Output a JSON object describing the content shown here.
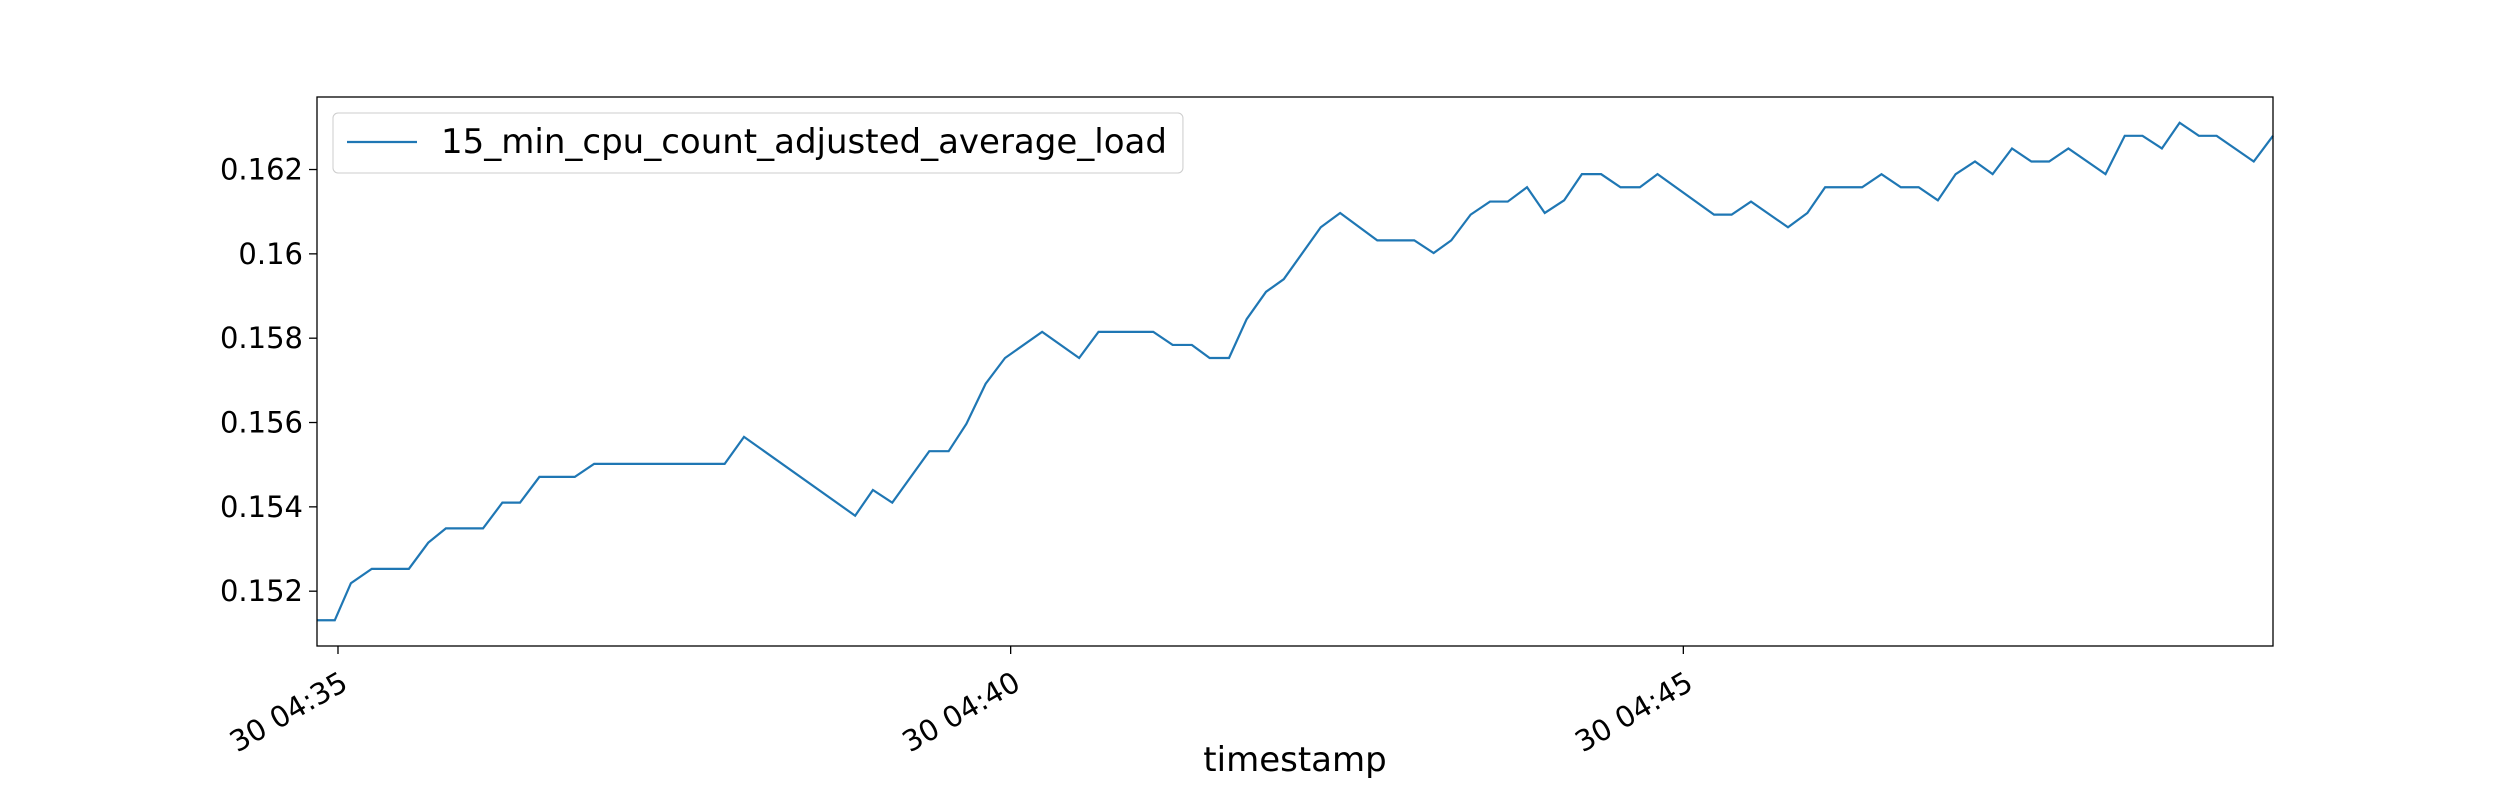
{
  "chart_data": {
    "type": "line",
    "xlabel": "timestamp",
    "x": [
      34.844,
      34.976,
      35.096,
      35.251,
      35.527,
      35.671,
      35.802,
      36.078,
      36.222,
      36.353,
      36.497,
      36.76,
      36.904,
      37.874,
      38.018,
      38.844,
      38.976,
      39.12,
      39.395,
      39.539,
      39.671,
      39.814,
      39.958,
      40.234,
      40.509,
      40.653,
      41.06,
      41.204,
      41.347,
      41.479,
      41.623,
      41.754,
      41.898,
      42.03,
      42.305,
      42.449,
      42.725,
      43.0,
      43.144,
      43.275,
      43.419,
      43.563,
      43.695,
      43.838,
      43.97,
      44.114,
      44.246,
      44.389,
      44.533,
      44.677,
      44.808,
      45.228,
      45.359,
      45.503,
      45.778,
      45.922,
      46.054,
      46.329,
      46.473,
      46.617,
      46.749,
      46.892,
      47.024,
      47.168,
      47.299,
      47.443,
      47.587,
      47.719,
      47.862,
      48.138,
      48.281,
      48.413,
      48.557,
      48.689,
      48.832,
      48.964,
      49.24,
      49.383
    ],
    "series": [
      {
        "name": "15_min_cpu_count_adjusted_average_load",
        "color": "#1f77b4",
        "values": [
          0.15131,
          0.15131,
          0.15219,
          0.15253,
          0.15253,
          0.15315,
          0.15349,
          0.15349,
          0.1541,
          0.1541,
          0.15471,
          0.15471,
          0.15502,
          0.15502,
          0.15566,
          0.15379,
          0.1544,
          0.1541,
          0.15532,
          0.15532,
          0.15597,
          0.15692,
          0.15753,
          0.15815,
          0.15753,
          0.15815,
          0.15815,
          0.15784,
          0.15784,
          0.15753,
          0.15753,
          0.15845,
          0.1591,
          0.1594,
          0.16063,
          0.16097,
          0.16032,
          0.16032,
          0.16002,
          0.16032,
          0.16093,
          0.16124,
          0.16124,
          0.16158,
          0.16097,
          0.16127,
          0.16189,
          0.16189,
          0.16158,
          0.16158,
          0.16189,
          0.16093,
          0.16093,
          0.16124,
          0.16063,
          0.16097,
          0.16158,
          0.16158,
          0.16189,
          0.16158,
          0.16158,
          0.16127,
          0.16189,
          0.16219,
          0.16189,
          0.1625,
          0.16219,
          0.16219,
          0.1625,
          0.16189,
          0.1628,
          0.1628,
          0.1625,
          0.16311,
          0.1628,
          0.1628,
          0.16219,
          0.1628
        ]
      }
    ],
    "xlim": [
      34.844,
      49.383
    ],
    "xticks": [
      {
        "value": 35,
        "label": "30 04:35"
      },
      {
        "value": 40,
        "label": "30 04:40"
      },
      {
        "value": 45,
        "label": "30 04:45"
      }
    ],
    "ylim": [
      0.1507,
      0.16372
    ],
    "yticks": [
      0.152,
      0.154,
      0.156,
      0.158,
      0.16,
      0.162
    ],
    "legend": "upper left",
    "grid": false
  }
}
